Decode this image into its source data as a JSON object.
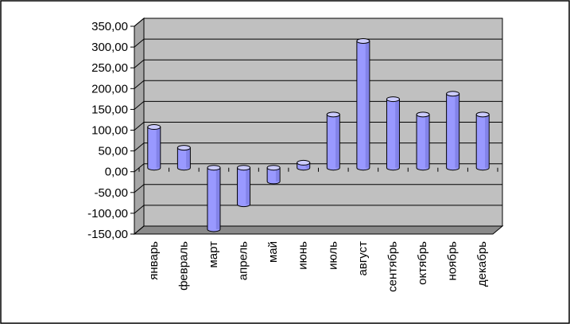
{
  "chart_data": {
    "type": "bar",
    "style": "3d-cylinder",
    "title": "",
    "xlabel": "",
    "ylabel": "",
    "ylim": [
      -150,
      350
    ],
    "ytick_step": 50,
    "ytick_labels": [
      "350,00",
      "300,00",
      "250,00",
      "200,00",
      "150,00",
      "100,00",
      "50,00",
      "0,00",
      "-50,00",
      "-100,00",
      "-150,00"
    ],
    "categories": [
      "январь",
      "февраль",
      "март",
      "апрель",
      "май",
      "июнь",
      "июль",
      "август",
      "сентябрь",
      "октябрь",
      "ноябрь",
      "декабрь"
    ],
    "values": [
      98,
      48,
      -148,
      -88,
      -33,
      12,
      128,
      305,
      165,
      128,
      178,
      128
    ],
    "grid": true,
    "legend": "none"
  },
  "colors": {
    "plot_background": "#c0c0c0",
    "side_wall": "#a6a6a6",
    "floor": "#8a8a8a",
    "bar_fill": "#9999ff",
    "bar_top": "#ccccff",
    "bar_dark": "#5c5cc0",
    "grid_line": "#000000"
  }
}
